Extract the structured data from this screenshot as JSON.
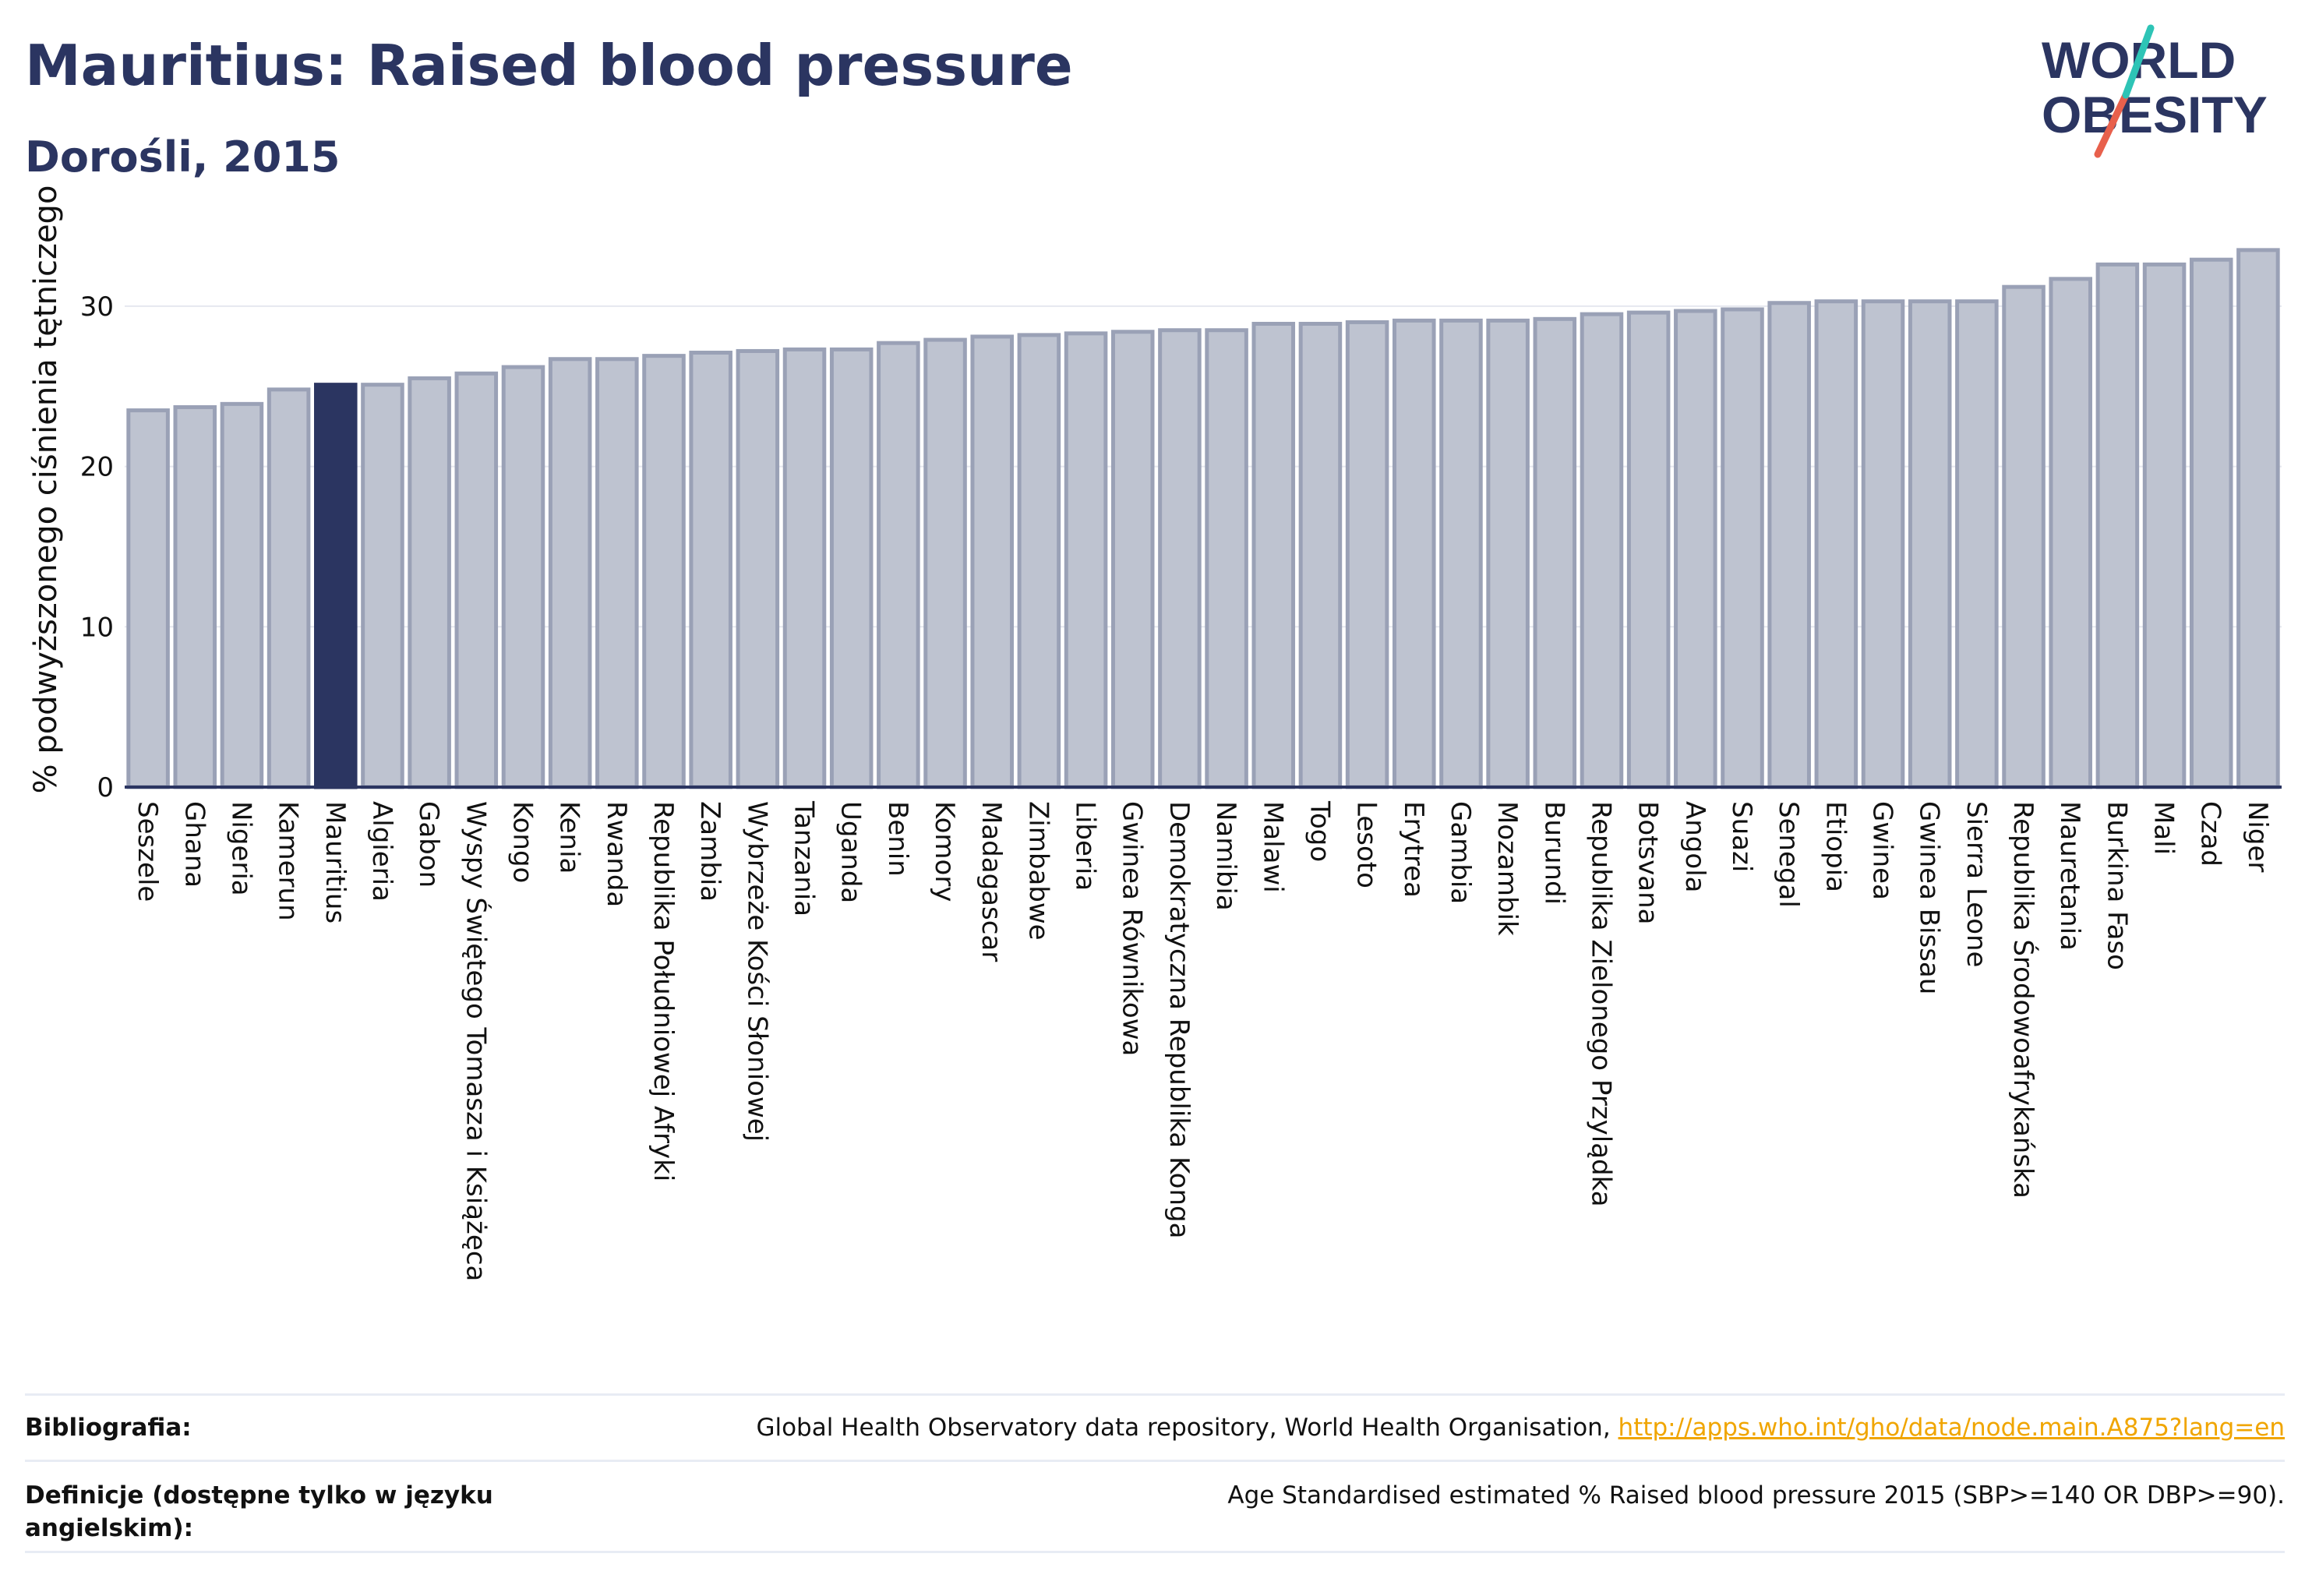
{
  "header": {
    "title": "Mauritius: Raised blood pressure",
    "subtitle": "Dorośli, 2015"
  },
  "logo": {
    "line1": "WORLD",
    "line2": "OBESITY",
    "accent_colors": [
      "#2ec4b6",
      "#e8604c"
    ]
  },
  "colors": {
    "highlight": "#2b3561",
    "bar": "#bec3d0",
    "bar_stroke": "#9aa1b6",
    "grid": "#e6e8ef",
    "axis": "#2b3561"
  },
  "chart_data": {
    "type": "bar",
    "ylabel": "% podwyższonego ciśnienia tętniczego",
    "xlabel": "",
    "ylim": [
      0,
      35
    ],
    "yticks": [
      0,
      10,
      20,
      30
    ],
    "grid": true,
    "highlight_category": "Mauritius",
    "categories": [
      "Seszele",
      "Ghana",
      "Nigeria",
      "Kamerun",
      "Mauritius",
      "Algieria",
      "Gabon",
      "Wyspy Świętego Tomasza i Książęca",
      "Kongo",
      "Kenia",
      "Rwanda",
      "Republika Południowej Afryki",
      "Zambia",
      "Wybrzeże Kości Słoniowej",
      "Tanzania",
      "Uganda",
      "Benin",
      "Komory",
      "Madagascar",
      "Zimbabwe",
      "Liberia",
      "Gwinea Równikowa",
      "Demokratyczna Republika Konga",
      "Namibia",
      "Malawi",
      "Togo",
      "Lesoto",
      "Erytrea",
      "Gambia",
      "Mozambik",
      "Burundi",
      "Republika Zielonego Przylądka",
      "Botsvana",
      "Angola",
      "Suazi",
      "Senegal",
      "Etiopia",
      "Gwinea",
      "Gwinea Bissau",
      "Sierra Leone",
      "Republika Środowoafrykańska",
      "Mauretania",
      "Burkina Faso",
      "Mali",
      "Czad",
      "Niger"
    ],
    "values": [
      23.5,
      23.7,
      23.9,
      24.8,
      25.1,
      25.1,
      25.5,
      25.8,
      26.2,
      26.7,
      26.7,
      26.9,
      27.1,
      27.2,
      27.3,
      27.3,
      27.7,
      27.9,
      28.1,
      28.2,
      28.3,
      28.4,
      28.5,
      28.5,
      28.9,
      28.9,
      29.0,
      29.1,
      29.1,
      29.1,
      29.2,
      29.5,
      29.6,
      29.7,
      29.8,
      30.2,
      30.3,
      30.3,
      30.3,
      30.3,
      31.2,
      31.7,
      32.6,
      32.6,
      32.9,
      33.5
    ]
  },
  "footer": {
    "bibliography_label": "Bibliografia:",
    "bibliography_text": "Global Health Observatory data repository, World Health Organisation, ",
    "bibliography_link": "http://apps.who.int/gho/data/node.main.A875?lang=en",
    "definition_label": "Definicje (dostępne tylko w języku angielskim):",
    "definition_text": "Age Standardised estimated % Raised blood pressure 2015 (SBP>=140 OR DBP>=90)."
  }
}
